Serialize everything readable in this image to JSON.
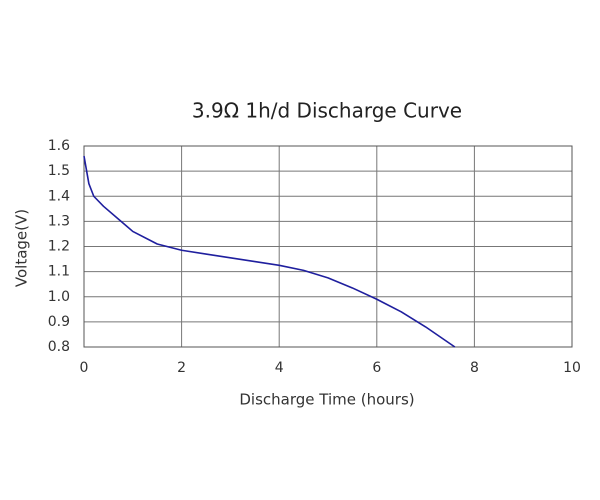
{
  "chart_data": {
    "type": "line",
    "title": "3.9Ω 1h/d Discharge Curve",
    "x_label": "Discharge Time (hours)",
    "y_label": "Voltage(V)",
    "x": [
      0,
      0.1,
      0.2,
      0.4,
      0.7,
      1,
      1.5,
      2,
      2.5,
      3,
      3.5,
      4,
      4.5,
      5,
      5.5,
      6,
      6.5,
      7,
      7.6
    ],
    "series": [
      {
        "name": "3.9Ω 1h/d",
        "color": "#1f1f9e",
        "values": [
          1.56,
          1.45,
          1.4,
          1.36,
          1.31,
          1.26,
          1.21,
          1.185,
          1.17,
          1.155,
          1.14,
          1.125,
          1.105,
          1.075,
          1.035,
          0.99,
          0.94,
          0.88,
          0.8
        ]
      }
    ],
    "xlim": [
      0,
      10
    ],
    "xticks": [
      0,
      2,
      4,
      6,
      8,
      10
    ],
    "ylim": [
      0.8,
      1.6
    ],
    "yticks": [
      0.8,
      0.9,
      {
        "value": 1,
        "label": "1.0"
      },
      1.1,
      1.2,
      1.3,
      1.4,
      1.5,
      1.6
    ],
    "grid": true
  }
}
